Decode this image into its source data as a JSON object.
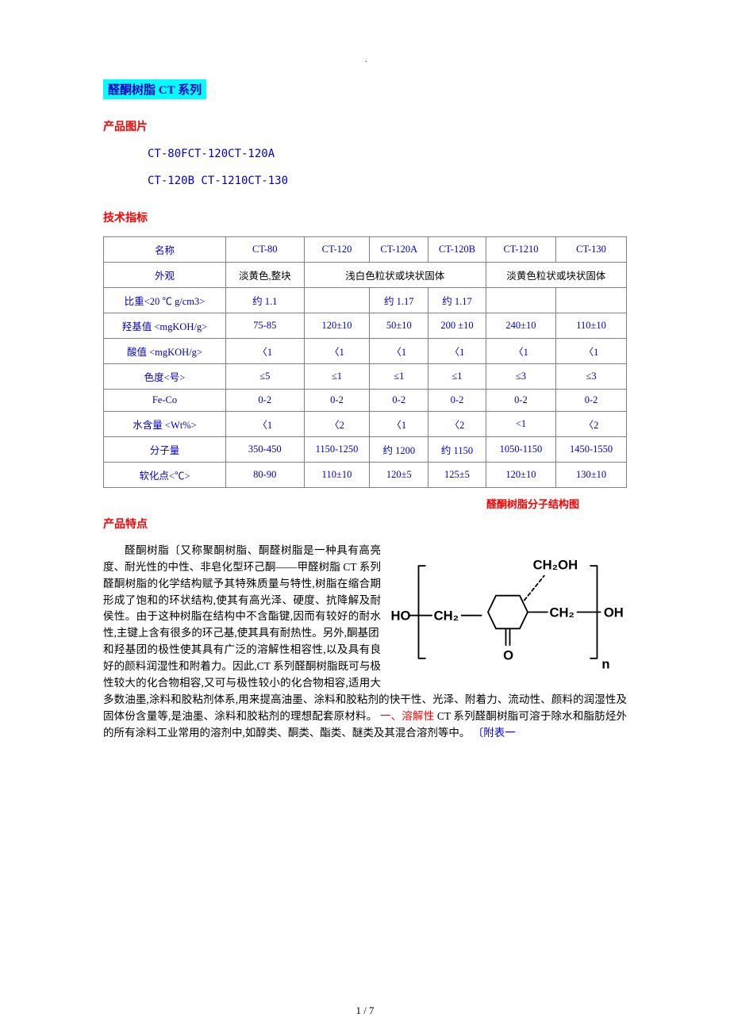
{
  "header_dot": ".",
  "title": "醛酮树脂 CT 系列",
  "sections": {
    "product_pic": "产品图片",
    "tech_spec": "技术指标",
    "features": "产品特点"
  },
  "product_codes": {
    "line1": "CT-80FCT-120CT-120A",
    "line2": "CT-120B CT-1210CT-130"
  },
  "spec_table": {
    "columns": [
      "名称",
      "CT-80",
      "CT-120",
      "CT-120A",
      "CT-120B",
      "CT-1210",
      "CT-130"
    ],
    "rows": [
      {
        "label": "外观",
        "cells": [
          "淡黄色,整块",
          {
            "span": 3,
            "text": "浅白色粒状或块状固体"
          },
          {
            "span": 2,
            "text": "淡黄色粒状或块状固体"
          }
        ],
        "black": true
      },
      {
        "label": "比重<20 ℃ g/cm3>",
        "cells": [
          "约 1.1",
          "",
          "约 1.17",
          "约 1.17",
          "",
          ""
        ]
      },
      {
        "label": "羟基值 <mgKOH/g>",
        "cells": [
          "75-85",
          "120±10",
          "50±10",
          "200 ±10",
          "240±10",
          "110±10"
        ]
      },
      {
        "label": "酸值 <mgKOH/g>",
        "cells": [
          "〈1",
          "〈1",
          "〈1",
          "〈1",
          "〈1",
          "〈1"
        ]
      },
      {
        "label": "色度<号>",
        "cells": [
          "≤5",
          "≤1",
          "≤1",
          "≤1",
          "≤3",
          "≤3"
        ]
      },
      {
        "label": "Fe-Co",
        "cells": [
          "0-2",
          "0-2",
          "0-2",
          "0-2",
          "0-2",
          "0-2"
        ]
      },
      {
        "label": "水含量 <Wt%>",
        "cells": [
          "〈1",
          "〈2",
          "〈1",
          "〈2",
          "<1",
          "〈2"
        ]
      },
      {
        "label": "分子量",
        "cells": [
          "350-450",
          "1150-1250",
          "约 1200",
          "约 1150",
          "1050-1150",
          "1450-1550"
        ]
      },
      {
        "label": "软化点<℃>",
        "cells": [
          "80-90",
          "110±10",
          "120±5",
          "125±5",
          "120±10",
          "130±10"
        ]
      }
    ],
    "border_color": "#808080",
    "header_color": "#0000cc",
    "cell_color": "#0000cc",
    "black_color": "#000000",
    "font_size": 12.5
  },
  "structure_caption": "醛酮树脂分子结构图",
  "structure": {
    "labels": {
      "HO_left": "HO",
      "CH2_left": "CH₂",
      "CH2OH": "CH₂OH",
      "CH2_right": "CH₂",
      "OH_right": "OH",
      "O_double": "O",
      "n": "n"
    },
    "stroke": "#000000",
    "stroke_width": 2.2,
    "font_family": "Arial, Helvetica, sans-serif",
    "font_weight": "bold",
    "font_size": 20
  },
  "features_text": {
    "p1_indent": "醛酮树脂〔又称聚酮树脂、酮醛树脂是一种具有高亮度、耐光性的中性、非皂化型环己酮——甲醛树脂 CT 系列醛酮树脂的化学结构赋予其特殊质量与特性,树脂在缩合期形成了饱和的环状结构,使其有高光泽、硬度、抗降解及耐侯性。由于这种树脂在结构中不含酯键,因而有较好的耐水性,主键上含有很多的环己基,使其具有耐热性。另外,酮基团",
    "p1_rest": "和羟基团的极性使其具有广泛的溶解性相容性,以及具有良好的颜料润湿性和附着力。因此,CT 系列醛酮树脂既可与极性较大的化合物相容,又可与极性较小的化合物相容,适用大多数油墨,涂料和胶粘剂体系,用来提高油墨、涂料和胶粘剂的快干性、光泽、附着力、流动性、颜料的润湿性及固体份含量等,是油墨、涂料和胶粘剂的理想配套原材料。",
    "solubility_label": "一、溶解性",
    "solubility_text": " CT 系列醛酮树脂可溶于除水和脂肪烃外的所有涂料工业常用的溶剂中,如醇类、酮类、酯类、醚类及其混合溶剂等中。",
    "appendix": "〔附表一"
  },
  "page_number": "1 / 7",
  "colors": {
    "title_bg": "#00ffff",
    "title_fg": "#0000cc",
    "heading": "#ff0000",
    "link_blue": "#0000cc",
    "text": "#000000",
    "background": "#ffffff"
  }
}
